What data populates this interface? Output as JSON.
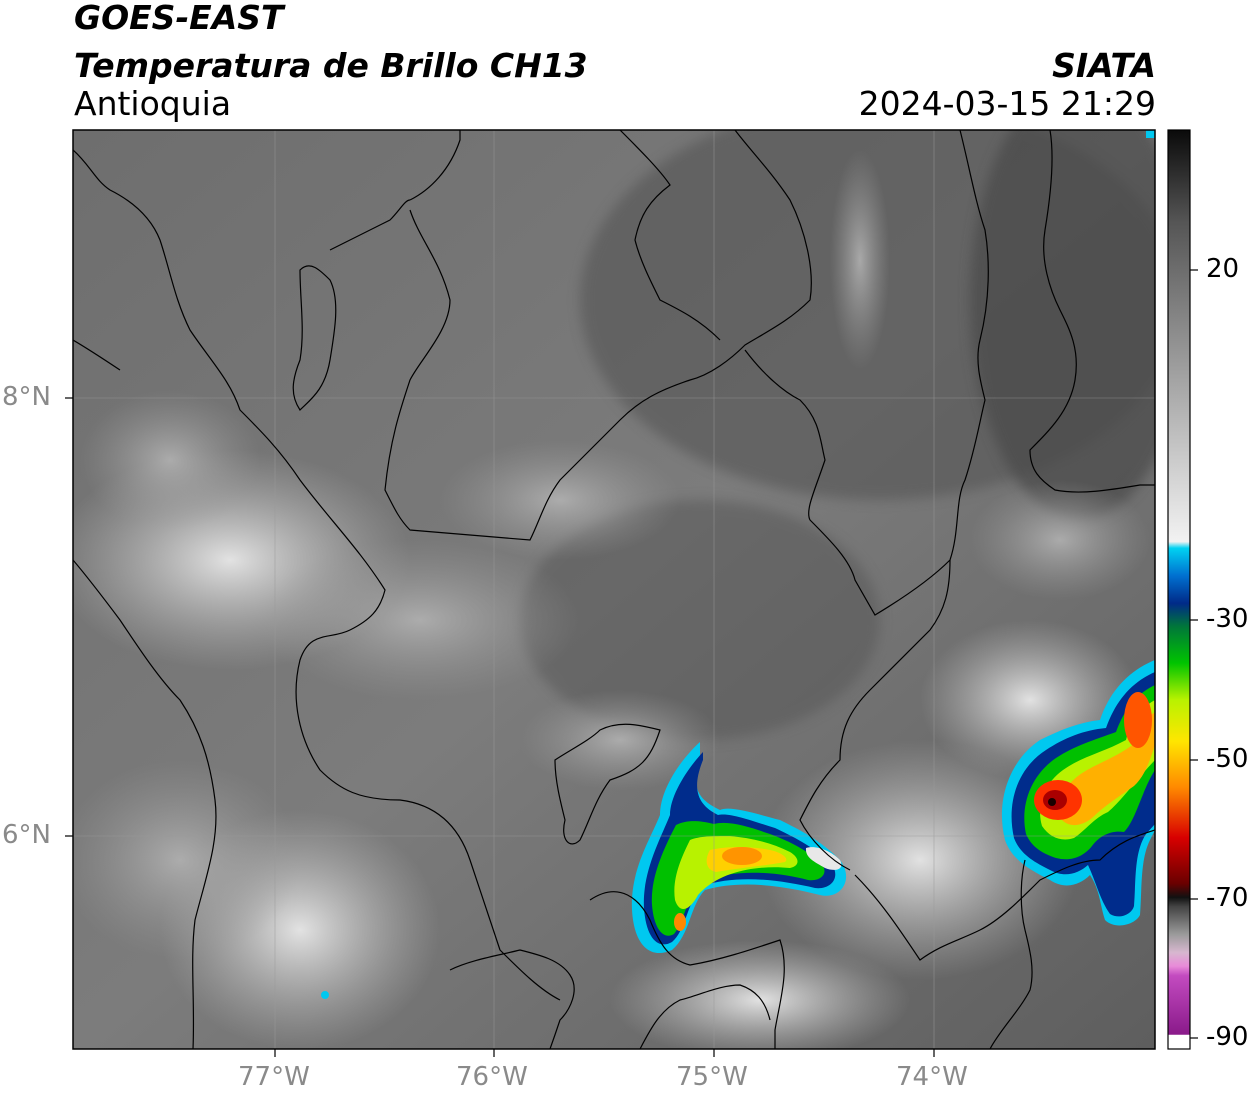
{
  "header": {
    "satellite": "GOES-EAST",
    "product": "Temperatura de Brillo CH13",
    "region": "Antioquia",
    "organization": "SIATA",
    "datetime": "2024-03-15 21:29"
  },
  "map": {
    "lat_ticks": [
      "8°N",
      "6°N"
    ],
    "lon_ticks": [
      "77°W",
      "76°W",
      "75°W",
      "74°W"
    ]
  },
  "colorbar": {
    "ticks": [
      "20",
      "-30",
      "-50",
      "-70",
      "-90"
    ],
    "range": [
      -90,
      35
    ],
    "colors": {
      "magenta": "#b01aa8",
      "pink": "#e27ad8",
      "black": "#000000",
      "red": "#cc0000",
      "orange": "#ff8800",
      "yellow": "#ffee00",
      "green": "#00c000",
      "dark_blue": "#002c8c",
      "cyan": "#00c8f0",
      "white": "#ffffff",
      "gray": "#777777"
    }
  }
}
